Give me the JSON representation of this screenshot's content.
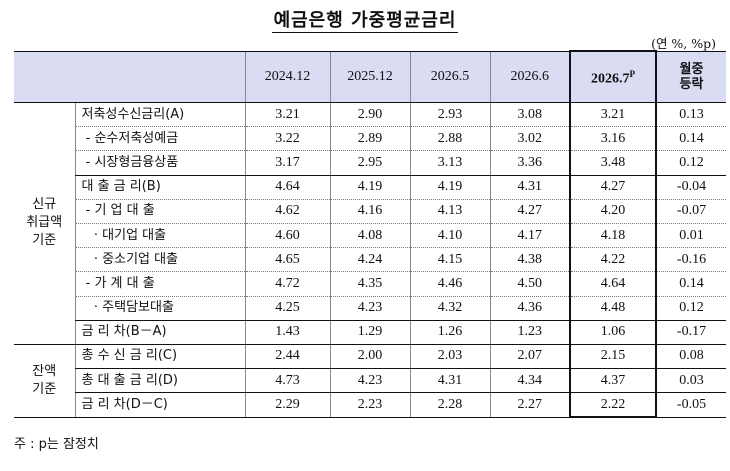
{
  "title": "예금은행 가중평균금리",
  "unit": "(연 %, %p)",
  "columns": [
    "2024.12",
    "2025.12",
    "2026.5",
    "2026.6",
    "2026.7",
    "월중\n등락"
  ],
  "preliminary_mark": "P",
  "groups": {
    "new": "신규\n취급액\n기준",
    "balance": "잔액\n기준"
  },
  "rows": [
    {
      "label": "저축성수신금리(A)",
      "values": [
        "3.21",
        "2.90",
        "2.93",
        "3.08",
        "3.21",
        "0.13"
      ]
    },
    {
      "label": " - 순수저축성예금",
      "values": [
        "3.22",
        "2.89",
        "2.88",
        "3.02",
        "3.16",
        "0.14"
      ]
    },
    {
      "label": " - 시장형금융상품",
      "values": [
        "3.17",
        "2.95",
        "3.13",
        "3.36",
        "3.48",
        "0.12"
      ]
    },
    {
      "label": "대 출 금 리(B)",
      "values": [
        "4.64",
        "4.19",
        "4.19",
        "4.31",
        "4.27",
        "-0.04"
      ]
    },
    {
      "label": " - 기 업 대 출",
      "values": [
        "4.62",
        "4.16",
        "4.13",
        "4.27",
        "4.20",
        "-0.07"
      ]
    },
    {
      "label": "   · 대기업 대출",
      "values": [
        "4.60",
        "4.08",
        "4.10",
        "4.17",
        "4.18",
        "0.01"
      ]
    },
    {
      "label": "   · 중소기업 대출",
      "values": [
        "4.65",
        "4.24",
        "4.15",
        "4.38",
        "4.22",
        "-0.16"
      ]
    },
    {
      "label": " - 가 계 대 출",
      "values": [
        "4.72",
        "4.35",
        "4.46",
        "4.50",
        "4.64",
        "0.14"
      ]
    },
    {
      "label": "   · 주택담보대출",
      "values": [
        "4.25",
        "4.23",
        "4.32",
        "4.36",
        "4.48",
        "0.12"
      ]
    },
    {
      "label": "금 리 차(B－A)",
      "values": [
        "1.43",
        "1.29",
        "1.26",
        "1.23",
        "1.06",
        "-0.17"
      ]
    },
    {
      "label": "총 수 신 금 리(C)",
      "values": [
        "2.44",
        "2.00",
        "2.03",
        "2.07",
        "2.15",
        "0.08"
      ]
    },
    {
      "label": "총 대 출 금 리(D)",
      "values": [
        "4.73",
        "4.23",
        "4.31",
        "4.34",
        "4.37",
        "0.03"
      ]
    },
    {
      "label": "금 리 차(D－C)",
      "values": [
        "2.29",
        "2.23",
        "2.28",
        "2.27",
        "2.22",
        "-0.05"
      ]
    }
  ],
  "footnote": "주 : p는 잠정치"
}
